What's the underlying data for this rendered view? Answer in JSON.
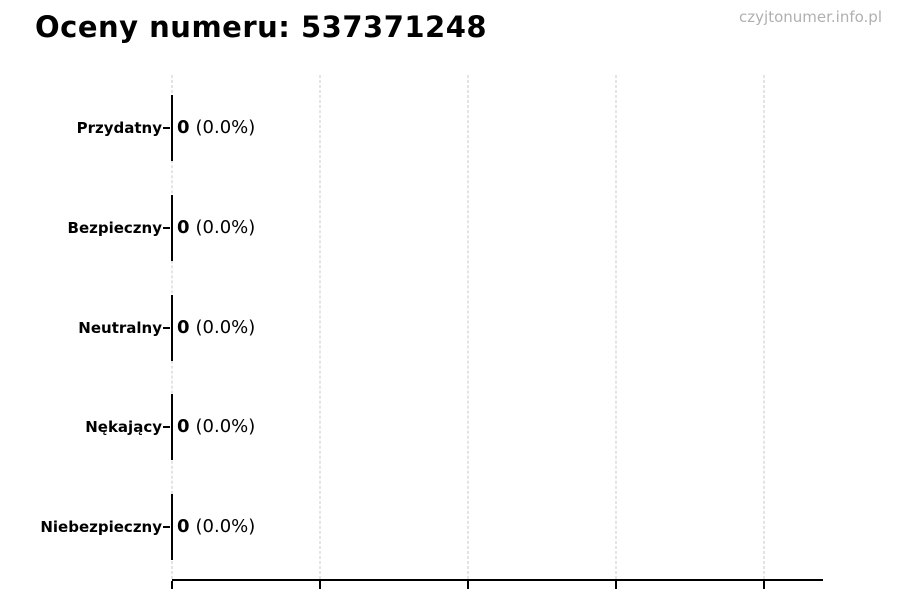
{
  "header": {
    "title": "Oceny numeru: 537371248",
    "watermark": "czyjtonumer.info.pl"
  },
  "chart_data": {
    "type": "bar",
    "orientation": "horizontal",
    "title": "Oceny numeru: 537371248",
    "categories": [
      "Przydatny",
      "Bezpieczny",
      "Neutralny",
      "Nękający",
      "Niebezpieczny"
    ],
    "values": [
      0,
      0,
      0,
      0,
      0
    ],
    "percent_labels": [
      "(0.0%)",
      "(0.0%)",
      "(0.0%)",
      "(0.0%)",
      "(0.0%)"
    ],
    "value_labels": [
      "0 (0.0%)",
      "0 (0.0%)",
      "0 (0.0%)",
      "0 (0.0%)",
      "0 (0.0%)"
    ],
    "grid": true,
    "gridline_count": 5,
    "legend": false,
    "x_tick_labels_visible": false
  },
  "colors": {
    "background": "#ffffff",
    "text": "#000000",
    "watermark": "#b0b0b0",
    "gridline": "#c9c9c9",
    "axis": "#000000",
    "bar_edge": "#000000"
  }
}
